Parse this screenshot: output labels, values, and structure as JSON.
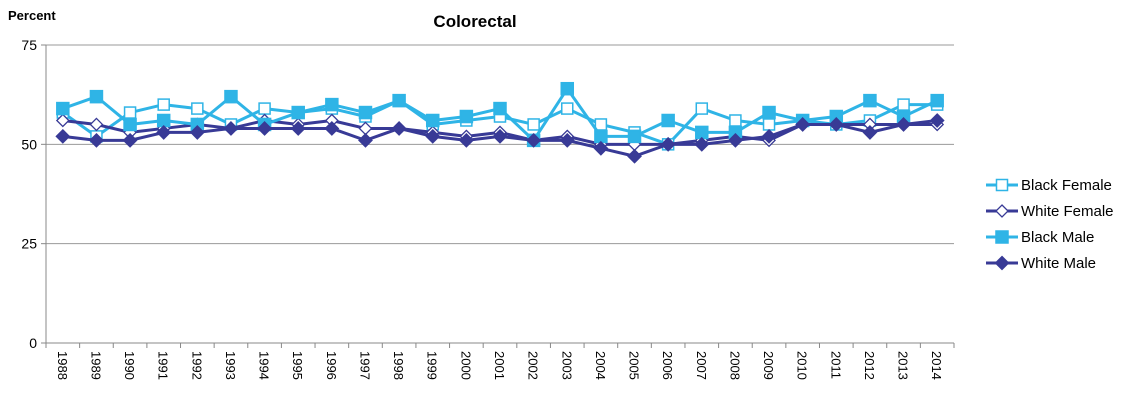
{
  "chart_data": {
    "type": "line",
    "title": "Colorectal",
    "ylabel": "Percent",
    "xlabel": "",
    "ylim": [
      0,
      75
    ],
    "yticks": [
      0,
      25,
      50,
      75
    ],
    "grid": true,
    "legend_position": "right",
    "categories": [
      "1988",
      "1989",
      "1990",
      "1991",
      "1992",
      "1993",
      "1994",
      "1995",
      "1996",
      "1997",
      "1998",
      "1999",
      "2000",
      "2001",
      "2002",
      "2003",
      "2004",
      "2005",
      "2006",
      "2007",
      "2008",
      "2009",
      "2010",
      "2011",
      "2012",
      "2013",
      "2014"
    ],
    "series": [
      {
        "name": "Black Female",
        "color": "#2FB4E6",
        "marker": "square-open",
        "values": [
          58,
          52,
          58,
          60,
          59,
          55,
          59,
          58,
          59,
          57,
          61,
          55,
          56,
          57,
          55,
          59,
          55,
          53,
          50,
          59,
          56,
          55,
          56,
          55,
          56,
          60,
          60
        ]
      },
      {
        "name": "White Female",
        "color": "#383A96",
        "marker": "diamond-open",
        "values": [
          56,
          55,
          53,
          54,
          55,
          54,
          56,
          55,
          56,
          54,
          54,
          53,
          52,
          53,
          51,
          52,
          50,
          50,
          50,
          51,
          52,
          51,
          55,
          55,
          55,
          55,
          55
        ]
      },
      {
        "name": "Black Male",
        "color": "#2FB4E6",
        "marker": "square-filled",
        "values": [
          59,
          62,
          55,
          56,
          55,
          62,
          55,
          58,
          60,
          58,
          61,
          56,
          57,
          59,
          51,
          64,
          52,
          52,
          56,
          53,
          53,
          58,
          56,
          57,
          61,
          57,
          61
        ]
      },
      {
        "name": "White Male",
        "color": "#383A96",
        "marker": "diamond-filled",
        "values": [
          52,
          51,
          51,
          53,
          53,
          54,
          54,
          54,
          54,
          51,
          54,
          52,
          51,
          52,
          51,
          51,
          49,
          47,
          50,
          50,
          51,
          52,
          55,
          55,
          53,
          55,
          56
        ]
      }
    ]
  }
}
